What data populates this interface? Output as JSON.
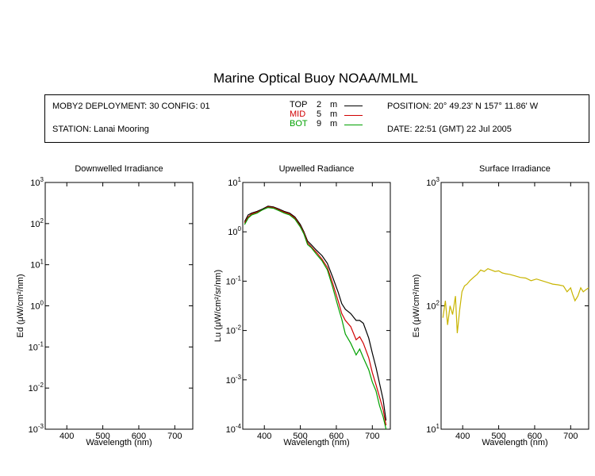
{
  "title": "Marine Optical Buoy NOAA/MLML",
  "info": {
    "deployment": "MOBY2 DEPLOYMENT: 30 CONFIG: 01",
    "station": "STATION: Lanai Mooring",
    "position": "POSITION: 20° 49.23' N   157° 11.86' W",
    "date": "DATE: 22:51 (GMT) 22 Jul 2005",
    "legend": [
      {
        "name": "TOP",
        "depth": "2",
        "unit": "m",
        "color": "#000000"
      },
      {
        "name": "MID",
        "depth": "5",
        "unit": "m",
        "color": "#d00000"
      },
      {
        "name": "BOT",
        "depth": "9",
        "unit": "m",
        "color": "#00a000"
      }
    ]
  },
  "chart_data": [
    {
      "type": "line",
      "title": "Downwelled Irradiance",
      "xlabel": "Wavelength (nm)",
      "ylabel": "Ed  (μW/cm²/nm)",
      "xlim": [
        340,
        750
      ],
      "ylim": [
        0.001,
        1000
      ],
      "log_y": true,
      "xticks": [
        "400",
        "500",
        "600",
        "700"
      ],
      "yticks": [
        "10-3",
        "10-2",
        "10-1",
        "100",
        "101",
        "102",
        "103"
      ],
      "series": []
    },
    {
      "type": "line",
      "title": "Upwelled Radiance",
      "xlabel": "Wavelength (nm)",
      "ylabel": "Lu  (μW/cm²/sr/nm)",
      "xlim": [
        340,
        750
      ],
      "ylim": [
        0.0001,
        10
      ],
      "log_y": true,
      "xticks": [
        "400",
        "500",
        "600",
        "700"
      ],
      "yticks": [
        "10-4",
        "10-3",
        "10-2",
        "10-1",
        "100",
        "101"
      ],
      "series": [
        {
          "name": "TOP",
          "color": "#000000",
          "x": [
            345,
            355,
            365,
            380,
            395,
            410,
            425,
            440,
            455,
            470,
            485,
            500,
            510,
            520,
            530,
            545,
            560,
            575,
            590,
            605,
            615,
            625,
            640,
            655,
            665,
            675,
            690,
            700,
            710,
            720,
            730,
            738
          ],
          "y": [
            1.6,
            2.2,
            2.4,
            2.6,
            2.9,
            3.3,
            3.2,
            2.9,
            2.6,
            2.4,
            2.0,
            1.4,
            1.0,
            0.65,
            0.55,
            0.42,
            0.33,
            0.23,
            0.12,
            0.06,
            0.035,
            0.027,
            0.022,
            0.016,
            0.016,
            0.014,
            0.007,
            0.0035,
            0.0018,
            0.00085,
            0.0004,
            0.00015
          ]
        },
        {
          "name": "MID",
          "color": "#d00000",
          "x": [
            345,
            355,
            365,
            380,
            395,
            410,
            425,
            440,
            455,
            470,
            485,
            500,
            510,
            520,
            530,
            545,
            560,
            575,
            590,
            605,
            615,
            625,
            640,
            655,
            665,
            675,
            690,
            700,
            710,
            720,
            730,
            738
          ],
          "y": [
            1.5,
            2.0,
            2.3,
            2.5,
            2.8,
            3.2,
            3.1,
            2.8,
            2.5,
            2.3,
            1.9,
            1.3,
            0.95,
            0.6,
            0.5,
            0.38,
            0.28,
            0.19,
            0.09,
            0.04,
            0.022,
            0.016,
            0.012,
            0.0065,
            0.0075,
            0.0055,
            0.0028,
            0.0014,
            0.0008,
            0.00045,
            0.00025,
            0.00012
          ]
        },
        {
          "name": "BOT",
          "color": "#00a000",
          "x": [
            345,
            355,
            365,
            380,
            395,
            410,
            425,
            440,
            455,
            470,
            485,
            500,
            510,
            520,
            530,
            545,
            560,
            575,
            590,
            605,
            615,
            625,
            640,
            655,
            665,
            675,
            690,
            700,
            710,
            720,
            730,
            738
          ],
          "y": [
            1.4,
            1.9,
            2.2,
            2.4,
            2.8,
            3.1,
            3.0,
            2.7,
            2.4,
            2.2,
            1.8,
            1.25,
            0.9,
            0.55,
            0.48,
            0.35,
            0.26,
            0.17,
            0.075,
            0.03,
            0.017,
            0.0085,
            0.0055,
            0.0032,
            0.0042,
            0.0028,
            0.0016,
            0.0009,
            0.0006,
            0.0003,
            0.00018,
            0.0001
          ]
        }
      ]
    },
    {
      "type": "line",
      "title": "Surface Irradiance",
      "xlabel": "Wavelength (nm)",
      "ylabel": "Es  (μW/cm²/nm)",
      "xlim": [
        340,
        750
      ],
      "ylim": [
        10,
        1000
      ],
      "log_y": true,
      "xticks": [
        "400",
        "500",
        "600",
        "700"
      ],
      "yticks": [
        "101",
        "102",
        "103"
      ],
      "series": [
        {
          "name": "Es",
          "color": "#c8b400",
          "x": [
            345,
            352,
            358,
            365,
            372,
            380,
            385,
            392,
            398,
            405,
            412,
            420,
            430,
            440,
            450,
            460,
            470,
            480,
            490,
            500,
            510,
            520,
            530,
            545,
            560,
            575,
            590,
            605,
            620,
            635,
            650,
            665,
            680,
            690,
            700,
            705,
            712,
            720,
            728,
            735,
            742,
            750
          ],
          "y": [
            80,
            110,
            70,
            100,
            85,
            120,
            60,
            95,
            130,
            145,
            150,
            160,
            170,
            180,
            195,
            190,
            200,
            195,
            190,
            192,
            185,
            182,
            180,
            175,
            170,
            168,
            160,
            165,
            160,
            155,
            150,
            148,
            145,
            130,
            140,
            125,
            110,
            120,
            140,
            130,
            135,
            140
          ]
        }
      ]
    }
  ]
}
